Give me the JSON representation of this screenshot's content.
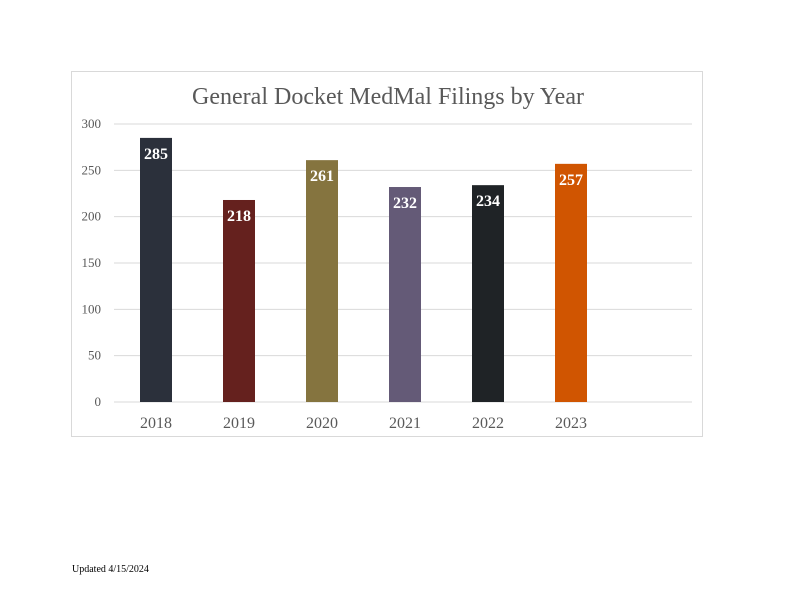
{
  "chart_data": {
    "type": "bar",
    "title": "General Docket MedMal Filings by Year",
    "categories": [
      "2018",
      "2019",
      "2020",
      "2021",
      "2022",
      "2023"
    ],
    "values": [
      285,
      218,
      261,
      232,
      234,
      257
    ],
    "colors": [
      "#2b303b",
      "#65211e",
      "#85743f",
      "#645a77",
      "#1f2326",
      "#d05501"
    ],
    "ylim": [
      0,
      300
    ],
    "yticks": [
      0,
      50,
      100,
      150,
      200,
      250,
      300
    ],
    "grid": true,
    "xlabel": "",
    "ylabel": ""
  },
  "footer": {
    "note": "Updated 4/15/2024"
  }
}
